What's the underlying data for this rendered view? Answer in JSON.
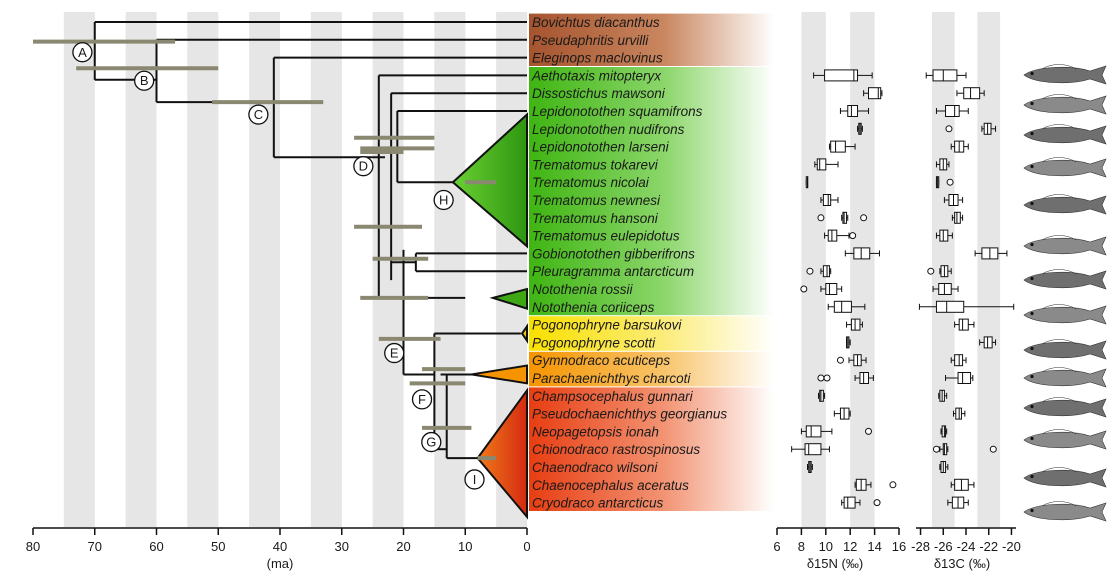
{
  "chart_data": [
    {
      "type": "phylogeny",
      "title": "",
      "xlabel": "(ma)",
      "x_ticks": [
        "80",
        "70",
        "60",
        "50",
        "40",
        "30",
        "20",
        "10",
        "0"
      ],
      "xlim": [
        80,
        0
      ],
      "taxa": [
        "Bovichtus diacanthus",
        "Pseudaphritis urvilli",
        "Eleginops maclovinus",
        "Aethotaxis mitopteryx",
        "Dissostichus mawsoni",
        "Lepidonotothen squamifrons",
        "Lepidonotothen nudifrons",
        "Lepidonotothen larseni",
        "Trematomus tokarevi",
        "Trematomus nicolai",
        "Trematomus newnesi",
        "Trematomus hansoni",
        "Trematomus eulepidotus",
        "Gobionotothen gibberifrons",
        "Pleuragramma antarcticum",
        "Notothenia rossii",
        "Notothenia coriiceps",
        "Pogonophryne barsukovi",
        "Pogonophryne scotti",
        "Gymnodraco acuticeps",
        "Parachaenichthys charcoti",
        "Champsocephalus gunnari",
        "Pseudochaenichthys georgianus",
        "Neopagetopsis ionah",
        "Chionodraco rastrospinosus",
        "Chaenodraco wilsoni",
        "Chaenocephalus aceratus",
        "Cryodraco antarcticus"
      ],
      "taxon_groups": [
        {
          "from": 0,
          "to": 2,
          "color": "#c47a52"
        },
        {
          "from": 3,
          "to": 16,
          "color": "#4ec01c"
        },
        {
          "from": 17,
          "to": 18,
          "color": "#f7dd16"
        },
        {
          "from": 19,
          "to": 20,
          "color": "#f6a01a"
        },
        {
          "from": 21,
          "to": 27,
          "color": "#ec4e1c"
        }
      ],
      "nodes": [
        {
          "label": "A",
          "age": 70,
          "ci": [
            80,
            57
          ]
        },
        {
          "label": "B",
          "age": 60,
          "ci": [
            73,
            50
          ]
        },
        {
          "label": "C",
          "age": 41,
          "ci": [
            51,
            33
          ]
        },
        {
          "label": "D",
          "age": 23,
          "ci": [
            27,
            15
          ]
        },
        {
          "label": "E",
          "age": 20,
          "ci": [
            24,
            14
          ]
        },
        {
          "label": "F",
          "age": 14,
          "ci": [
            19,
            10
          ]
        },
        {
          "label": "G",
          "age": 12,
          "ci": [
            17,
            9
          ]
        },
        {
          "label": "H",
          "age": 8,
          "ci": [
            10,
            5
          ]
        },
        {
          "label": "I",
          "age": 7,
          "ci": [
            8,
            5
          ]
        }
      ]
    },
    {
      "type": "boxplot",
      "xlabel": "δ15N (‰)",
      "x_ticks": [
        "6",
        "8",
        "10",
        "12",
        "14",
        "16"
      ],
      "xlim": [
        6,
        16
      ],
      "boxes": [
        [
          9.0,
          9.9,
          12.3,
          12.6,
          13.8
        ],
        [
          13.1,
          13.5,
          14.3,
          14.5,
          14.6
        ],
        [
          11.2,
          11.8,
          12.1,
          12.6,
          13.5
        ],
        [
          12.6,
          12.7,
          12.8,
          12.9,
          13.0
        ],
        [
          10.3,
          10.4,
          10.8,
          11.6,
          12.4
        ],
        [
          9.1,
          9.3,
          9.5,
          10.0,
          11.0
        ],
        [
          8.4,
          8.4,
          8.5,
          8.5,
          8.5
        ],
        [
          9.6,
          9.8,
          10.2,
          10.4,
          11.0
        ],
        [
          11.3,
          11.4,
          11.5,
          11.7,
          11.8
        ],
        [
          9.9,
          10.2,
          10.5,
          10.9,
          11.9
        ],
        [
          11.6,
          12.3,
          12.9,
          13.6,
          14.4
        ],
        [
          9.6,
          9.8,
          10.1,
          10.3,
          10.4
        ],
        [
          9.6,
          10.0,
          10.3,
          10.9,
          11.3
        ],
        [
          10.2,
          10.7,
          11.3,
          12.1,
          13.2
        ],
        [
          11.7,
          12.1,
          12.4,
          12.8,
          13.0
        ],
        [
          11.7,
          11.7,
          11.8,
          11.9,
          12.0
        ],
        [
          11.9,
          12.3,
          12.6,
          12.9,
          13.3
        ],
        [
          12.4,
          12.8,
          13.1,
          13.5,
          13.9
        ],
        [
          9.4,
          9.5,
          9.6,
          9.8,
          9.9
        ],
        [
          10.7,
          11.2,
          11.5,
          11.9,
          12.0
        ],
        [
          8.0,
          8.4,
          8.8,
          9.6,
          10.5
        ],
        [
          7.2,
          8.3,
          8.6,
          9.6,
          10.3
        ],
        [
          8.5,
          8.6,
          8.7,
          8.8,
          8.9
        ],
        [
          12.4,
          12.5,
          12.9,
          13.3,
          13.7
        ],
        [
          11.3,
          11.5,
          11.8,
          12.4,
          12.8
        ]
      ],
      "box_rows": [
        3,
        4,
        5,
        6,
        7,
        8,
        9,
        10,
        11,
        12,
        13,
        14,
        15,
        16,
        17,
        18,
        19,
        20,
        21,
        22,
        23,
        24,
        25,
        26,
        27
      ],
      "outliers": [
        {
          "row": 11,
          "value": 9.6
        },
        {
          "row": 11,
          "value": 13.1
        },
        {
          "row": 12,
          "value": 12.2
        },
        {
          "row": 14,
          "value": 8.7
        },
        {
          "row": 15,
          "value": 8.2
        },
        {
          "row": 19,
          "value": 11.2
        },
        {
          "row": 20,
          "value": 9.6
        },
        {
          "row": 20,
          "value": 10.1
        },
        {
          "row": 23,
          "value": 13.5
        },
        {
          "row": 26,
          "value": 15.5
        },
        {
          "row": 27,
          "value": 14.2
        }
      ]
    },
    {
      "type": "boxplot",
      "xlabel": "δ13C (‰)",
      "x_ticks": [
        "-28",
        "-26",
        "-24",
        "-22",
        "-20"
      ],
      "xlim": [
        -28.4,
        -19.6
      ],
      "boxes": [
        [
          -27.5,
          -26.9,
          -26.0,
          -24.8,
          -24.0
        ],
        [
          -24.8,
          -24.2,
          -23.6,
          -22.8,
          -22.4
        ],
        [
          -26.6,
          -25.8,
          -25.0,
          -24.6,
          -23.8
        ],
        [
          -22.6,
          -22.4,
          -22.1,
          -21.8,
          -21.4
        ],
        [
          -25.3,
          -25.0,
          -24.6,
          -24.2,
          -23.8
        ],
        [
          -26.6,
          -26.3,
          -26.0,
          -25.7,
          -25.5
        ],
        [
          -26.6,
          -26.6,
          -26.5,
          -26.4,
          -26.4
        ],
        [
          -25.9,
          -25.5,
          -25.1,
          -24.7,
          -24.3
        ],
        [
          -25.2,
          -25.0,
          -24.8,
          -24.5,
          -24.3
        ],
        [
          -26.6,
          -26.3,
          -26.0,
          -25.6,
          -25.2
        ],
        [
          -23.2,
          -22.6,
          -21.9,
          -21.2,
          -20.4
        ],
        [
          -26.3,
          -26.2,
          -25.9,
          -25.6,
          -25.3
        ],
        [
          -26.9,
          -26.4,
          -25.9,
          -25.3,
          -24.7
        ],
        [
          -28.1,
          -26.6,
          -25.7,
          -24.2,
          -19.8
        ],
        [
          -25.0,
          -24.6,
          -24.3,
          -23.8,
          -23.3
        ],
        [
          -22.8,
          -22.4,
          -22.1,
          -21.7,
          -21.4
        ],
        [
          -25.3,
          -25.0,
          -24.6,
          -24.3,
          -24.0
        ],
        [
          -25.8,
          -24.7,
          -24.3,
          -23.6,
          -23.4
        ],
        [
          -26.4,
          -26.3,
          -26.1,
          -25.9,
          -25.7
        ],
        [
          -25.1,
          -24.9,
          -24.6,
          -24.4,
          -24.1
        ],
        [
          -26.2,
          -26.1,
          -25.9,
          -25.8,
          -25.7
        ],
        [
          -26.3,
          -26.0,
          -25.9,
          -25.7,
          -25.6
        ],
        [
          -26.3,
          -26.2,
          -26.0,
          -25.8,
          -25.6
        ],
        [
          -25.3,
          -25.0,
          -24.4,
          -23.8,
          -23.3
        ],
        [
          -25.6,
          -25.2,
          -24.7,
          -24.2,
          -23.8
        ]
      ],
      "box_rows": [
        3,
        4,
        5,
        6,
        7,
        8,
        9,
        10,
        11,
        12,
        13,
        14,
        15,
        16,
        17,
        18,
        19,
        20,
        21,
        22,
        23,
        24,
        25,
        26,
        27
      ],
      "outliers": [
        {
          "row": 6,
          "value": -25.5
        },
        {
          "row": 9,
          "value": -25.4
        },
        {
          "row": 14,
          "value": -27.1
        },
        {
          "row": 24,
          "value": -21.6
        },
        {
          "row": 24,
          "value": -26.6
        }
      ]
    }
  ]
}
